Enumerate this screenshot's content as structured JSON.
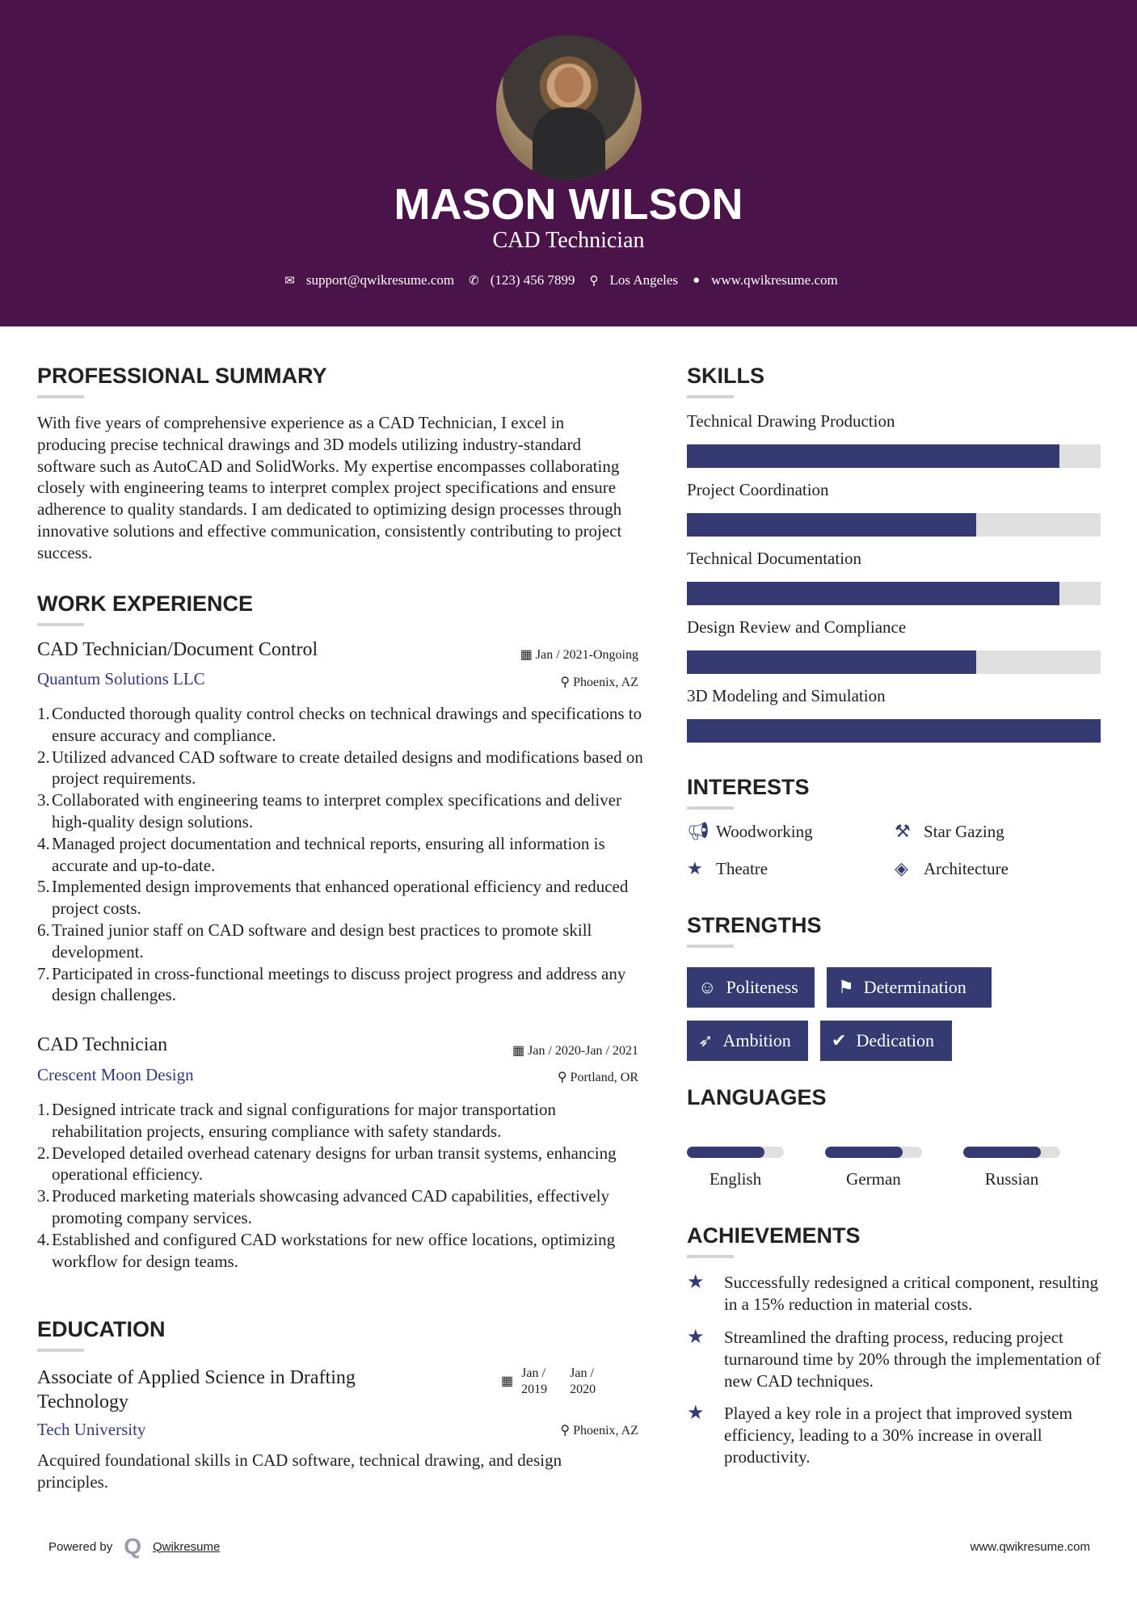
{
  "header": {
    "name": "MASON WILSON",
    "title": "CAD Technician",
    "email": "support@qwikresume.com",
    "phone": "(123) 456 7899",
    "location": "Los Angeles",
    "website": "www.qwikresume.com"
  },
  "summary": {
    "heading": "PROFESSIONAL SUMMARY",
    "text": "With five years of comprehensive experience as a CAD Technician, I excel in producing precise technical drawings and 3D models utilizing industry-standard software such as AutoCAD and SolidWorks. My expertise encompasses collaborating closely with engineering teams to interpret complex project specifications and ensure adherence to quality standards. I am dedicated to optimizing design processes through innovative solutions and effective communication, consistently contributing to project success."
  },
  "work": {
    "heading": "WORK EXPERIENCE",
    "jobs": [
      {
        "title": "CAD Technician/Document Control",
        "company": "Quantum Solutions LLC",
        "dates": "Jan / 2021-Ongoing",
        "location": "Phoenix, AZ",
        "bullets": [
          "Conducted thorough quality control checks on technical drawings and specifications to ensure accuracy and compliance.",
          "Utilized advanced CAD software to create detailed designs and modifications based on project requirements.",
          "Collaborated with engineering teams to interpret complex specifications and deliver high-quality design solutions.",
          "Managed project documentation and technical reports, ensuring all information is accurate and up-to-date.",
          "Implemented design improvements that enhanced operational efficiency and reduced project costs.",
          "Trained junior staff on CAD software and design best practices to promote skill development.",
          "Participated in cross-functional meetings to discuss project progress and address any design challenges."
        ]
      },
      {
        "title": "CAD Technician",
        "company": "Crescent Moon Design",
        "dates": "Jan / 2020-Jan / 2021",
        "location": "Portland, OR",
        "bullets": [
          "Designed intricate track and signal configurations for major transportation rehabilitation projects, ensuring compliance with safety standards.",
          "Developed detailed overhead catenary designs for urban transit systems, enhancing operational efficiency.",
          "Produced marketing materials showcasing advanced CAD capabilities, effectively promoting company services.",
          "Established and configured CAD workstations for new office locations, optimizing workflow for design teams."
        ]
      }
    ]
  },
  "education": {
    "heading": "EDUCATION",
    "degree": "Associate of Applied Science in Drafting Technology",
    "school": "Tech University",
    "start": "Jan / 2019",
    "end": "Jan / 2020",
    "location": "Phoenix, AZ",
    "description": "Acquired foundational skills in CAD software, technical drawing, and design principles."
  },
  "skills": {
    "heading": "SKILLS",
    "items": [
      {
        "label": "Technical Drawing Production",
        "level": 90
      },
      {
        "label": "Project Coordination",
        "level": 70
      },
      {
        "label": "Technical Documentation",
        "level": 90
      },
      {
        "label": "Design Review and Compliance",
        "level": 70
      },
      {
        "label": "3D Modeling and Simulation",
        "level": 100
      }
    ]
  },
  "interests": {
    "heading": "INTERESTS",
    "items": [
      {
        "label": "Woodworking",
        "icon": "bullhorn-icon"
      },
      {
        "label": "Star Gazing",
        "icon": "gavel-icon"
      },
      {
        "label": "Theatre",
        "icon": "star-icon"
      },
      {
        "label": "Architecture",
        "icon": "ticket-icon"
      }
    ]
  },
  "strengths": {
    "heading": "STRENGTHS",
    "items": [
      {
        "label": "Politeness",
        "icon": "smile-icon"
      },
      {
        "label": "Determination",
        "icon": "flag-checkered-icon"
      },
      {
        "label": "Ambition",
        "icon": "rocket-icon"
      },
      {
        "label": "Dedication",
        "icon": "check-circle-icon"
      }
    ]
  },
  "languages": {
    "heading": "LANGUAGES",
    "items": [
      {
        "label": "English",
        "level": 80
      },
      {
        "label": "German",
        "level": 80
      },
      {
        "label": "Russian",
        "level": 80
      }
    ]
  },
  "achievements": {
    "heading": "ACHIEVEMENTS",
    "items": [
      "Successfully redesigned a critical component, resulting in a 15% reduction in material costs.",
      "Streamlined the drafting process, reducing project turnaround time by 20% through the implementation of new CAD techniques.",
      "Played a key role in a project that improved system efficiency, leading to a 30% increase in overall productivity."
    ]
  },
  "footer": {
    "powered": "Powered by",
    "brand": "Qwikresume",
    "website": "www.qwikresume.com"
  },
  "colors": {
    "header": "#4a1449",
    "accent": "#343a72"
  }
}
